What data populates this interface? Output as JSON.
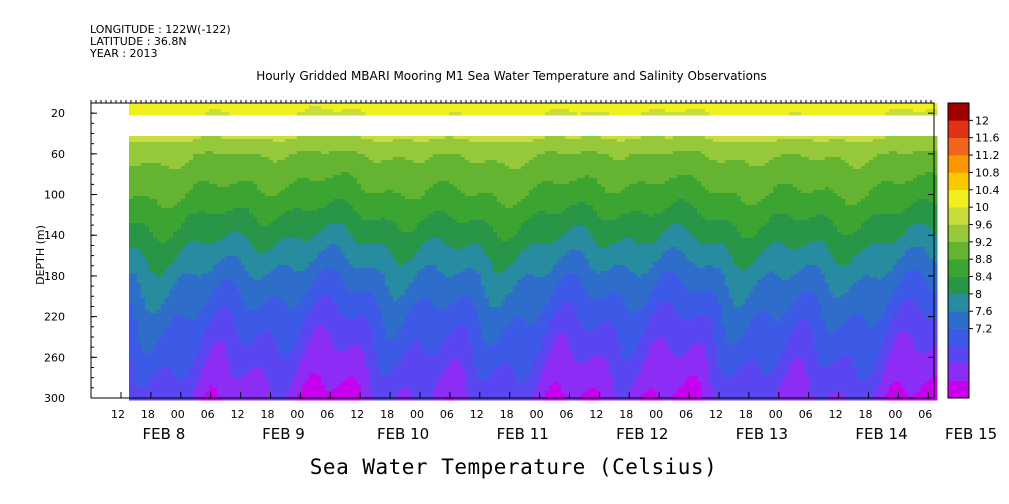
{
  "header": {
    "longitude": "LONGITUDE : 122W(-122)",
    "latitude": "LATITUDE : 36.8N",
    "year": "YEAR : 2013"
  },
  "chart_data": {
    "type": "heatmap",
    "title": "Hourly Gridded MBARI Mooring M1 Sea Water Temperature and Salinity Observations",
    "xlabel": "Sea Water Temperature (Celsius)",
    "ylabel": "DEPTH (m)",
    "ylim": [
      300,
      10
    ],
    "yticks": [
      20,
      60,
      100,
      140,
      180,
      220,
      260,
      300
    ],
    "x_hour_ticks": [
      "12",
      "18",
      "00",
      "06",
      "12",
      "18",
      "00",
      "06",
      "12",
      "18",
      "00",
      "06",
      "12",
      "18",
      "00",
      "06",
      "12",
      "18",
      "00",
      "06",
      "12",
      "18",
      "00",
      "06",
      "12",
      "18",
      "00",
      "06"
    ],
    "x_day_labels": [
      "FEB  8",
      "FEB  9",
      "FEB 10",
      "FEB 11",
      "FEB 12",
      "FEB 13",
      "FEB 14",
      "FEB 15"
    ],
    "colorbar": {
      "levels": [
        7.2,
        7.6,
        8,
        8.4,
        8.8,
        9.2,
        9.6,
        10,
        10.4,
        10.8,
        11.2,
        11.6,
        12
      ],
      "labels": [
        "12",
        "11.6",
        "11.2",
        "10.8",
        "10.4",
        "10",
        "9.6",
        "9.2",
        "8.8",
        "8.4",
        "8",
        "7.6",
        "7.2"
      ],
      "colors": [
        "#c800f0",
        "#8c2cf5",
        "#5a46f0",
        "#3c5ae6",
        "#2e6eca",
        "#288ca0",
        "#289646",
        "#3ca532",
        "#64b432",
        "#96c83c",
        "#c8dc3c",
        "#f0f01e",
        "#fac800",
        "#fa9600",
        "#f0641e",
        "#e03214",
        "#a00000"
      ]
    },
    "depth_profile": [
      {
        "depth": 10,
        "temp": 11.4
      },
      {
        "depth": 40,
        "temp": 10.9
      },
      {
        "depth": 60,
        "temp": 10.4
      },
      {
        "depth": 100,
        "temp": 9.9
      },
      {
        "depth": 140,
        "temp": 9.3
      },
      {
        "depth": 180,
        "temp": 8.7
      },
      {
        "depth": 220,
        "temp": 8.2
      },
      {
        "depth": 260,
        "temp": 7.8
      },
      {
        "depth": 300,
        "temp": 7.4
      }
    ],
    "missing_depth_range": [
      20,
      40
    ]
  }
}
